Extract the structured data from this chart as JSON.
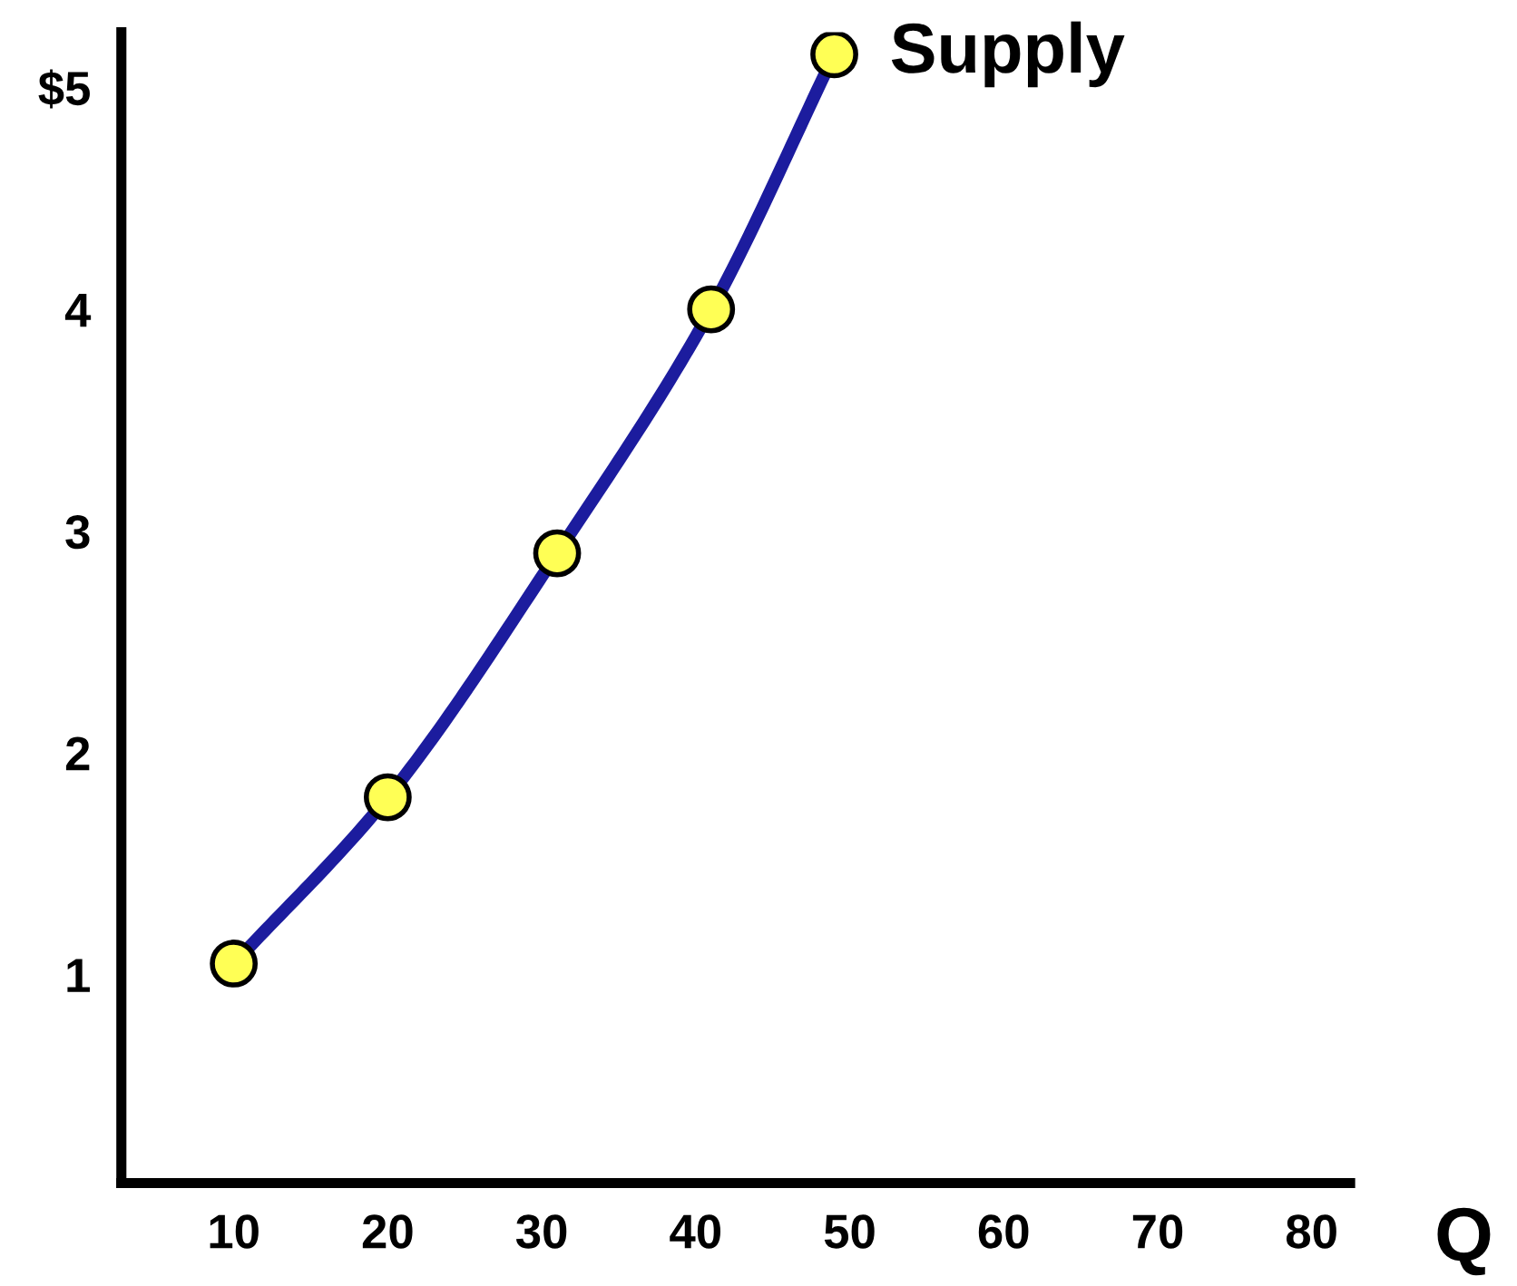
{
  "chart_data": {
    "type": "line",
    "xlabel": "Q",
    "x": [
      10,
      20,
      31,
      41,
      49
    ],
    "series": [
      {
        "color": "#1c1c9e",
        "values": [
          1.05,
          1.8,
          2.9,
          4.0,
          5.15
        ]
      }
    ],
    "marker": "circle",
    "line_style": "solid",
    "grid": false,
    "legend": false,
    "xlim": [
      2.7,
      82.5
    ],
    "ylim": [
      0.06,
      5.25
    ],
    "xticks": [
      10,
      20,
      30,
      40,
      50,
      60,
      70,
      80
    ],
    "yticks": [
      1,
      2,
      3,
      4,
      {
        "value": 5,
        "label": "$5"
      }
    ],
    "annotations": [
      {
        "text": "Supply",
        "x": 49,
        "y": 5.15
      }
    ]
  }
}
